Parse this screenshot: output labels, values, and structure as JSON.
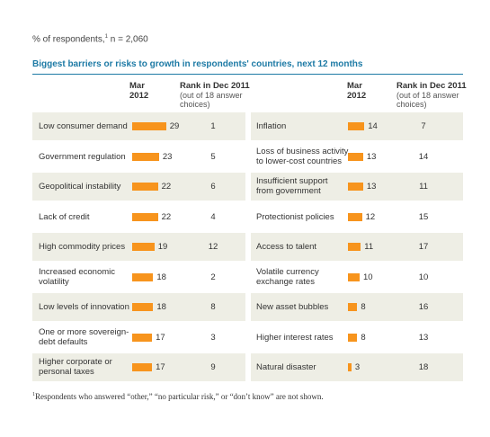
{
  "subtitle": {
    "text": "% of respondents,",
    "sup": "1",
    "suffix": " n = 2,060"
  },
  "chart_title": "Biggest barriers or risks to growth in respondents' countries, next 12 months",
  "headers": {
    "mar_line1": "Mar",
    "mar_line2": "2012",
    "rank_line1": "Rank in Dec 2011",
    "rank_line2": "(out of 18 answer",
    "rank_line3": "choices)"
  },
  "chart_data": {
    "type": "bar",
    "title": "Biggest barriers or risks to growth in respondents' countries, next 12 months",
    "value_unit": "% of respondents",
    "bar_color": "#f7941d",
    "xlim": [
      0,
      30
    ],
    "left_column": [
      {
        "label": [
          "Low consumer demand"
        ],
        "value": 29,
        "rank": 1
      },
      {
        "label": [
          "Government regulation"
        ],
        "value": 23,
        "rank": 5
      },
      {
        "label": [
          "Geopolitical instability"
        ],
        "value": 22,
        "rank": 6
      },
      {
        "label": [
          "Lack of credit"
        ],
        "value": 22,
        "rank": 4
      },
      {
        "label": [
          "High commodity prices"
        ],
        "value": 19,
        "rank": 12
      },
      {
        "label": [
          "Increased economic",
          "volatility"
        ],
        "value": 18,
        "rank": 2
      },
      {
        "label": [
          "Low levels of innovation"
        ],
        "value": 18,
        "rank": 8
      },
      {
        "label": [
          "One or more sovereign-",
          "debt defaults"
        ],
        "value": 17,
        "rank": 3
      },
      {
        "label": [
          "Higher corporate or",
          "personal taxes"
        ],
        "value": 17,
        "rank": 9
      }
    ],
    "right_column": [
      {
        "label": [
          "Inflation"
        ],
        "value": 14,
        "rank": 7
      },
      {
        "label": [
          "Loss of business activity",
          "to lower-cost countries"
        ],
        "value": 13,
        "rank": 14
      },
      {
        "label": [
          "Insufficient support",
          "from government"
        ],
        "value": 13,
        "rank": 11
      },
      {
        "label": [
          "Protectionist policies"
        ],
        "value": 12,
        "rank": 15
      },
      {
        "label": [
          "Access to talent"
        ],
        "value": 11,
        "rank": 17
      },
      {
        "label": [
          "Volatile currency",
          "exchange rates"
        ],
        "value": 10,
        "rank": 10
      },
      {
        "label": [
          "New asset bubbles"
        ],
        "value": 8,
        "rank": 16
      },
      {
        "label": [
          "Higher interest rates"
        ],
        "value": 8,
        "rank": 13
      },
      {
        "label": [
          "Natural disaster"
        ],
        "value": 3,
        "rank": 18
      }
    ]
  },
  "footnote": {
    "sup": "1",
    "text": "Respondents who answered “other,” “no particular risk,” or “don’t know” are not shown."
  }
}
